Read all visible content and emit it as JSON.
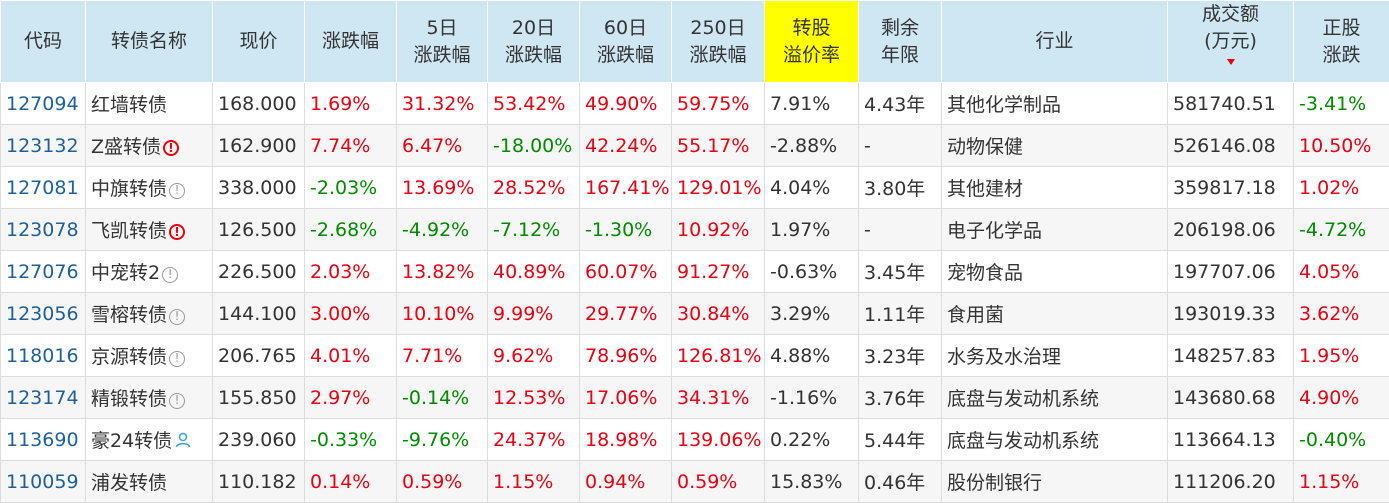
{
  "headers": [
    {
      "key": "code",
      "label": "代码"
    },
    {
      "key": "name",
      "label": "转债名称"
    },
    {
      "key": "price",
      "label": "现价"
    },
    {
      "key": "change",
      "label": "涨跌幅"
    },
    {
      "key": "chg5",
      "label": "5日\n涨跌幅"
    },
    {
      "key": "chg20",
      "label": "20日\n涨跌幅"
    },
    {
      "key": "chg60",
      "label": "60日\n涨跌幅"
    },
    {
      "key": "chg250",
      "label": "250日\n涨跌幅"
    },
    {
      "key": "premium",
      "label": "转股\n溢价率",
      "highlight": true
    },
    {
      "key": "years",
      "label": "剩余\n年限"
    },
    {
      "key": "industry",
      "label": "行业"
    },
    {
      "key": "turnover",
      "label": "成交额\n(万元)",
      "sorted": "desc"
    },
    {
      "key": "stock_chg",
      "label": "正股\n涨跌"
    }
  ],
  "colors": {
    "up": "#e60012",
    "down": "#008a00",
    "code": "#1f5f9c",
    "header_bg": "#cfe6f3",
    "highlight": "#ffff00"
  },
  "rows": [
    {
      "code": "127094",
      "name": "红墙转债",
      "badge": "",
      "price": "168.000",
      "change": "1.69%",
      "chg5": "31.32%",
      "chg20": "53.42%",
      "chg60": "49.90%",
      "chg250": "59.75%",
      "premium": "7.91%",
      "years": "4.43年",
      "industry": "其他化学制品",
      "turnover": "581740.51",
      "stock_chg": "-3.41%"
    },
    {
      "code": "123132",
      "name": "Z盛转债",
      "badge": "warn",
      "price": "162.900",
      "change": "7.74%",
      "chg5": "6.47%",
      "chg20": "-18.00%",
      "chg60": "42.24%",
      "chg250": "55.17%",
      "premium": "-2.88%",
      "years": "-",
      "industry": "动物保健",
      "turnover": "526146.08",
      "stock_chg": "10.50%"
    },
    {
      "code": "127081",
      "name": "中旗转债",
      "badge": "info",
      "price": "338.000",
      "change": "-2.03%",
      "chg5": "13.69%",
      "chg20": "28.52%",
      "chg60": "167.41%",
      "chg250": "129.01%",
      "premium": "4.04%",
      "years": "3.80年",
      "industry": "其他建材",
      "turnover": "359817.18",
      "stock_chg": "1.02%"
    },
    {
      "code": "123078",
      "name": "飞凯转债",
      "badge": "warn",
      "price": "126.500",
      "change": "-2.68%",
      "chg5": "-4.92%",
      "chg20": "-7.12%",
      "chg60": "-1.30%",
      "chg250": "10.92%",
      "premium": "1.97%",
      "years": "-",
      "industry": "电子化学品",
      "turnover": "206198.06",
      "stock_chg": "-4.72%"
    },
    {
      "code": "127076",
      "name": "中宠转2",
      "badge": "info",
      "price": "226.500",
      "change": "2.03%",
      "chg5": "13.82%",
      "chg20": "40.89%",
      "chg60": "60.07%",
      "chg250": "91.27%",
      "premium": "-0.63%",
      "years": "3.45年",
      "industry": "宠物食品",
      "turnover": "197707.06",
      "stock_chg": "4.05%"
    },
    {
      "code": "123056",
      "name": "雪榕转债",
      "badge": "info",
      "price": "144.100",
      "change": "3.00%",
      "chg5": "10.10%",
      "chg20": "9.99%",
      "chg60": "29.77%",
      "chg250": "30.84%",
      "premium": "3.29%",
      "years": "1.11年",
      "industry": "食用菌",
      "turnover": "193019.33",
      "stock_chg": "3.62%"
    },
    {
      "code": "118016",
      "name": "京源转债",
      "badge": "info",
      "price": "206.765",
      "change": "4.01%",
      "chg5": "7.71%",
      "chg20": "9.62%",
      "chg60": "78.96%",
      "chg250": "126.81%",
      "premium": "4.88%",
      "years": "3.23年",
      "industry": "水务及水治理",
      "turnover": "148257.83",
      "stock_chg": "1.95%"
    },
    {
      "code": "123174",
      "name": "精锻转债",
      "badge": "info",
      "price": "155.850",
      "change": "2.97%",
      "chg5": "-0.14%",
      "chg20": "12.53%",
      "chg60": "17.06%",
      "chg250": "34.31%",
      "premium": "-1.16%",
      "years": "3.76年",
      "industry": "底盘与发动机系统",
      "turnover": "143680.68",
      "stock_chg": "4.90%"
    },
    {
      "code": "113690",
      "name": "豪24转债",
      "badge": "user",
      "price": "239.060",
      "change": "-0.33%",
      "chg5": "-9.76%",
      "chg20": "24.37%",
      "chg60": "18.98%",
      "chg250": "139.06%",
      "premium": "0.22%",
      "years": "5.44年",
      "industry": "底盘与发动机系统",
      "turnover": "113664.13",
      "stock_chg": "-0.40%"
    },
    {
      "code": "110059",
      "name": "浦发转债",
      "badge": "",
      "price": "110.182",
      "change": "0.14%",
      "chg5": "0.59%",
      "chg20": "1.15%",
      "chg60": "0.94%",
      "chg250": "0.59%",
      "premium": "15.83%",
      "years": "0.46年",
      "industry": "股份制银行",
      "turnover": "111206.20",
      "stock_chg": "1.15%"
    }
  ]
}
